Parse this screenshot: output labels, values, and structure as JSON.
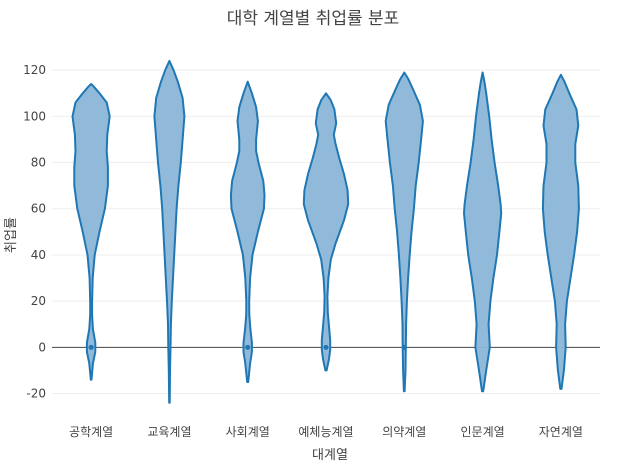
{
  "chart_data": {
    "type": "violin",
    "title": "대학 계열별 취업률 분포",
    "xlabel": "대계열",
    "ylabel": "취업률",
    "ylim": [
      -28,
      127
    ],
    "yticks": [
      -20,
      0,
      20,
      40,
      60,
      80,
      100,
      120
    ],
    "grid": true,
    "fill_color": "#8bb6d8",
    "line_color": "#1f77b4",
    "zero_line_color": "#444444",
    "categories": [
      "공학계열",
      "교육계열",
      "사회계열",
      "예체능계열",
      "의약계열",
      "인문계열",
      "자연계열"
    ],
    "violins": [
      {
        "category": "공학계열",
        "min": -14,
        "max": 114,
        "median": 0,
        "profile": [
          [
            -14,
            0.3
          ],
          [
            -7,
            1.5
          ],
          [
            -2,
            3.5
          ],
          [
            2,
            3.5
          ],
          [
            8,
            1.5
          ],
          [
            14,
            0.8
          ],
          [
            20,
            0.8
          ],
          [
            30,
            1.3
          ],
          [
            40,
            3
          ],
          [
            50,
            7
          ],
          [
            60,
            11.5
          ],
          [
            70,
            14
          ],
          [
            78,
            14
          ],
          [
            85,
            13
          ],
          [
            92,
            13.5
          ],
          [
            100,
            15.5
          ],
          [
            106,
            13
          ],
          [
            110,
            7
          ],
          [
            113,
            2
          ],
          [
            114,
            0
          ]
        ]
      },
      {
        "category": "교육계열",
        "min": -24,
        "max": 124,
        "median": null,
        "profile": [
          [
            -24,
            0.2
          ],
          [
            -10,
            0.5
          ],
          [
            0,
            0.9
          ],
          [
            10,
            1.2
          ],
          [
            20,
            2
          ],
          [
            30,
            3
          ],
          [
            40,
            4
          ],
          [
            50,
            5
          ],
          [
            60,
            6
          ],
          [
            70,
            7.5
          ],
          [
            80,
            9.5
          ],
          [
            90,
            11
          ],
          [
            100,
            12.5
          ],
          [
            108,
            11
          ],
          [
            115,
            7
          ],
          [
            120,
            3.5
          ],
          [
            124,
            0
          ]
        ]
      },
      {
        "category": "사회계열",
        "min": -15,
        "max": 115,
        "median": 0,
        "profile": [
          [
            -15,
            0.4
          ],
          [
            -7,
            2
          ],
          [
            -2,
            3.5
          ],
          [
            2,
            3.5
          ],
          [
            8,
            2.2
          ],
          [
            14,
            1.3
          ],
          [
            20,
            1.2
          ],
          [
            30,
            2
          ],
          [
            40,
            4
          ],
          [
            50,
            8.5
          ],
          [
            60,
            13.5
          ],
          [
            66,
            14
          ],
          [
            72,
            13
          ],
          [
            80,
            9
          ],
          [
            85,
            7
          ],
          [
            90,
            7
          ],
          [
            98,
            8.5
          ],
          [
            104,
            7
          ],
          [
            110,
            3.5
          ],
          [
            115,
            0
          ]
        ]
      },
      {
        "category": "예체능계열",
        "min": -10,
        "max": 110,
        "median": 0,
        "profile": [
          [
            -10,
            0.5
          ],
          [
            -5,
            2.5
          ],
          [
            -1,
            3.5
          ],
          [
            3,
            3.5
          ],
          [
            9,
            2.5
          ],
          [
            15,
            1.5
          ],
          [
            22,
            1.2
          ],
          [
            30,
            2
          ],
          [
            38,
            4
          ],
          [
            45,
            8
          ],
          [
            55,
            15
          ],
          [
            62,
            18.5
          ],
          [
            68,
            18
          ],
          [
            75,
            15
          ],
          [
            82,
            11
          ],
          [
            88,
            8
          ],
          [
            92,
            6.5
          ],
          [
            97,
            8.5
          ],
          [
            103,
            7
          ],
          [
            107,
            4
          ],
          [
            110,
            0
          ]
        ]
      },
      {
        "category": "의약계열",
        "min": -19,
        "max": 119,
        "median": 0,
        "profile": [
          [
            -19,
            0.3
          ],
          [
            -10,
            1
          ],
          [
            0,
            1.3
          ],
          [
            10,
            1.5
          ],
          [
            20,
            2.2
          ],
          [
            30,
            3.2
          ],
          [
            40,
            4.5
          ],
          [
            50,
            6
          ],
          [
            60,
            8
          ],
          [
            70,
            9.5
          ],
          [
            80,
            12
          ],
          [
            90,
            14
          ],
          [
            98,
            15.5
          ],
          [
            105,
            13
          ],
          [
            112,
            7
          ],
          [
            116,
            3.5
          ],
          [
            119,
            0
          ]
        ]
      },
      {
        "category": "인문계열",
        "min": -19,
        "max": 119,
        "median": null,
        "profile": [
          [
            -19,
            0.5
          ],
          [
            -10,
            3
          ],
          [
            0,
            6
          ],
          [
            10,
            5
          ],
          [
            20,
            6.5
          ],
          [
            30,
            9
          ],
          [
            40,
            12
          ],
          [
            50,
            14
          ],
          [
            58,
            15.5
          ],
          [
            62,
            15
          ],
          [
            70,
            13
          ],
          [
            80,
            10
          ],
          [
            90,
            7.5
          ],
          [
            100,
            5.5
          ],
          [
            110,
            3
          ],
          [
            115,
            1.5
          ],
          [
            119,
            0
          ]
        ]
      },
      {
        "category": "자연계열",
        "min": -18,
        "max": 118,
        "median": null,
        "profile": [
          [
            -18,
            0.5
          ],
          [
            -10,
            2.5
          ],
          [
            0,
            4
          ],
          [
            10,
            3.5
          ],
          [
            20,
            5
          ],
          [
            30,
            8
          ],
          [
            40,
            11
          ],
          [
            50,
            13.5
          ],
          [
            60,
            15
          ],
          [
            70,
            14.5
          ],
          [
            80,
            12
          ],
          [
            88,
            12
          ],
          [
            96,
            14.5
          ],
          [
            103,
            13
          ],
          [
            110,
            7
          ],
          [
            115,
            3
          ],
          [
            118,
            0
          ]
        ]
      }
    ]
  }
}
